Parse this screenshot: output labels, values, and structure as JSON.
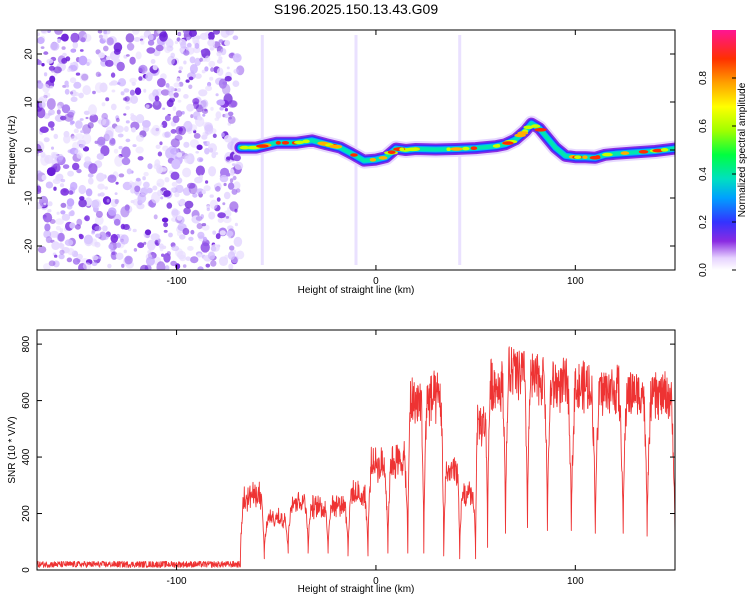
{
  "title": "S196.2025.150.13.43.G09",
  "chart_data": [
    {
      "name": "spectrogram",
      "type": "heatmap",
      "xlabel": "Height of straight line (km)",
      "ylabel": "Frequency (Hz)",
      "xlim": [
        -170,
        150
      ],
      "ylim": [
        -25,
        25
      ],
      "x_ticks": [
        -100,
        0,
        100
      ],
      "y_ticks": [
        -20,
        -10,
        0,
        10,
        20
      ],
      "colorbar": {
        "label": "Normalized spectral amplitude",
        "range": [
          0,
          1
        ],
        "ticks": [
          0.0,
          0.2,
          0.4,
          0.6,
          0.8
        ],
        "tick_labels": [
          "0.0",
          "0.2",
          "0.4",
          "0.6",
          "0.8"
        ]
      },
      "noise_region_x": [
        -170,
        -68
      ],
      "ridge": {
        "x": [
          -68,
          -60,
          -50,
          -40,
          -32,
          -25,
          -18,
          -12,
          -6,
          0,
          5,
          10,
          15,
          20,
          30,
          40,
          50,
          60,
          65,
          70,
          75,
          78,
          82,
          86,
          90,
          95,
          100,
          105,
          110,
          115,
          120,
          130,
          140,
          150
        ],
        "freq": [
          0.5,
          0.5,
          1.5,
          1.5,
          2.0,
          1.2,
          0.5,
          -0.8,
          -2.2,
          -2.0,
          -1.5,
          0.3,
          0.0,
          0.2,
          0.1,
          0.2,
          0.4,
          0.8,
          1.2,
          2.2,
          4.0,
          5.5,
          4.5,
          2.5,
          0.5,
          -1.2,
          -1.5,
          -1.5,
          -1.6,
          -1.0,
          -0.8,
          -0.5,
          -0.2,
          0.3
        ]
      },
      "spikes_x": [
        -57,
        -10,
        42
      ]
    },
    {
      "name": "snr",
      "type": "line",
      "xlabel": "Height of straight line (km)",
      "ylabel": "SNR (10 * V/V)",
      "xlim": [
        -170,
        150
      ],
      "ylim": [
        0,
        850
      ],
      "x_ticks": [
        -100,
        0,
        100
      ],
      "y_ticks": [
        0,
        200,
        400,
        600,
        800
      ],
      "color": "#ee3333",
      "series": [
        {
          "name": "SNR",
          "segments": [
            {
              "x": [
                -170,
                -68
              ],
              "low": 20,
              "high": 20
            },
            {
              "x": [
                -68,
                -56
              ],
              "low": 40,
              "high": 300
            },
            {
              "x": [
                -56,
                -44
              ],
              "low": 60,
              "high": 200
            },
            {
              "x": [
                -44,
                -34
              ],
              "low": 80,
              "high": 270
            },
            {
              "x": [
                -34,
                -24
              ],
              "low": 60,
              "high": 250
            },
            {
              "x": [
                -24,
                -14
              ],
              "low": 70,
              "high": 260
            },
            {
              "x": [
                -14,
                -4
              ],
              "low": 50,
              "high": 300
            },
            {
              "x": [
                -4,
                6
              ],
              "low": 60,
              "high": 420
            },
            {
              "x": [
                6,
                16
              ],
              "low": 60,
              "high": 440
            },
            {
              "x": [
                16,
                24
              ],
              "low": 60,
              "high": 680
            },
            {
              "x": [
                24,
                34
              ],
              "low": 60,
              "high": 690
            },
            {
              "x": [
                34,
                42
              ],
              "low": 50,
              "high": 400
            },
            {
              "x": [
                42,
                50
              ],
              "low": 40,
              "high": 300
            },
            {
              "x": [
                50,
                56
              ],
              "low": 80,
              "high": 580
            },
            {
              "x": [
                56,
                65
              ],
              "low": 130,
              "high": 740
            },
            {
              "x": [
                65,
                76
              ],
              "low": 150,
              "high": 790
            },
            {
              "x": [
                76,
                86
              ],
              "low": 150,
              "high": 760
            },
            {
              "x": [
                86,
                98
              ],
              "low": 140,
              "high": 740
            },
            {
              "x": [
                98,
                110
              ],
              "low": 140,
              "high": 730
            },
            {
              "x": [
                110,
                124
              ],
              "low": 130,
              "high": 720
            },
            {
              "x": [
                124,
                136
              ],
              "low": 130,
              "high": 710
            },
            {
              "x": [
                136,
                150
              ],
              "low": 120,
              "high": 700
            }
          ]
        }
      ]
    }
  ]
}
